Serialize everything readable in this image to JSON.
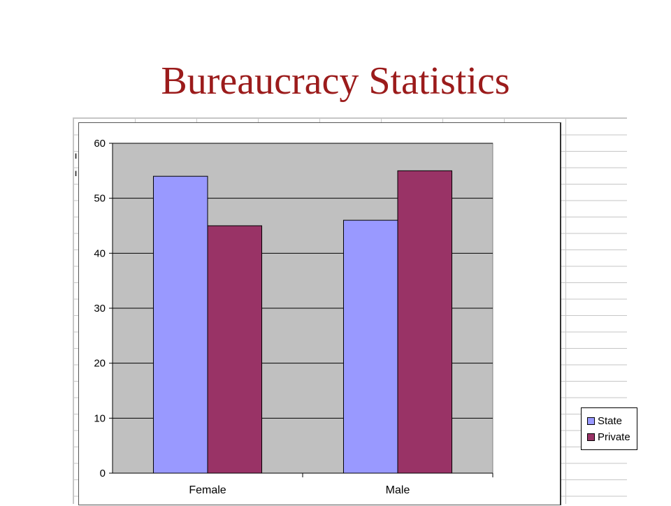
{
  "slide": {
    "title": "Bureaucracy Statistics"
  },
  "chart_data": {
    "type": "bar",
    "categories": [
      "Female",
      "Male"
    ],
    "series": [
      {
        "name": "State",
        "values": [
          54,
          46
        ],
        "color": "#9999ff"
      },
      {
        "name": "Private",
        "values": [
          45,
          55
        ],
        "color": "#993366"
      }
    ],
    "ylim": [
      0,
      60
    ],
    "yticks": [
      0,
      10,
      20,
      30,
      40,
      50,
      60
    ],
    "grid": true,
    "plot_background": "#c0c0c0",
    "legend_position": "right",
    "title": "",
    "xlabel": "",
    "ylabel": ""
  }
}
